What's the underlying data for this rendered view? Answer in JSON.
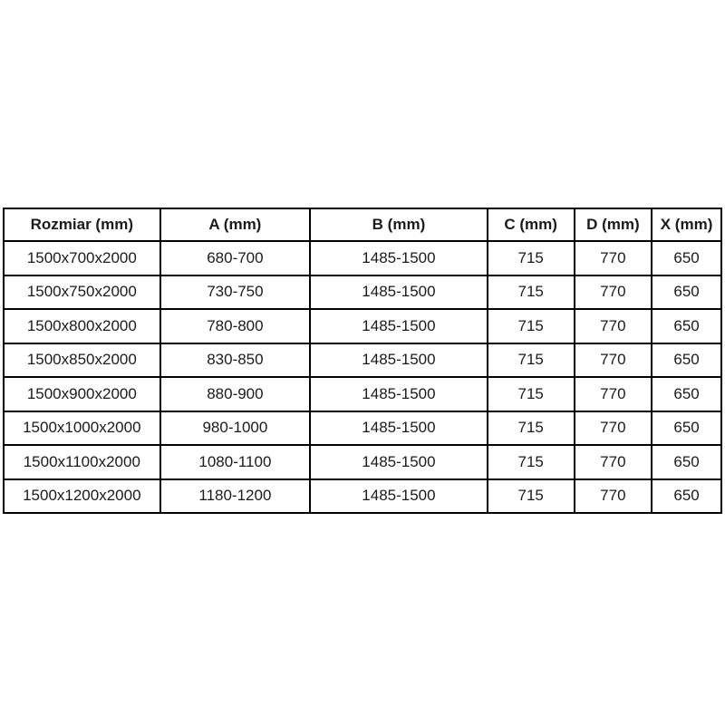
{
  "table": {
    "headers": [
      "Rozmiar (mm)",
      "A (mm)",
      "B (mm)",
      "C (mm)",
      "D (mm)",
      "X (mm)"
    ],
    "rows": [
      [
        "1500x700x2000",
        "680-700",
        "1485-1500",
        "715",
        "770",
        "650"
      ],
      [
        "1500x750x2000",
        "730-750",
        "1485-1500",
        "715",
        "770",
        "650"
      ],
      [
        "1500x800x2000",
        "780-800",
        "1485-1500",
        "715",
        "770",
        "650"
      ],
      [
        "1500x850x2000",
        "830-850",
        "1485-1500",
        "715",
        "770",
        "650"
      ],
      [
        "1500x900x2000",
        "880-900",
        "1485-1500",
        "715",
        "770",
        "650"
      ],
      [
        "1500x1000x2000",
        "980-1000",
        "1485-1500",
        "715",
        "770",
        "650"
      ],
      [
        "1500x1100x2000",
        "1080-1100",
        "1485-1500",
        "715",
        "770",
        "650"
      ],
      [
        "1500x1200x2000",
        "1180-1200",
        "1485-1500",
        "715",
        "770",
        "650"
      ]
    ],
    "colors": {
      "border": "#000000",
      "text": "#1b1b1b",
      "background": "#ffffff"
    }
  }
}
